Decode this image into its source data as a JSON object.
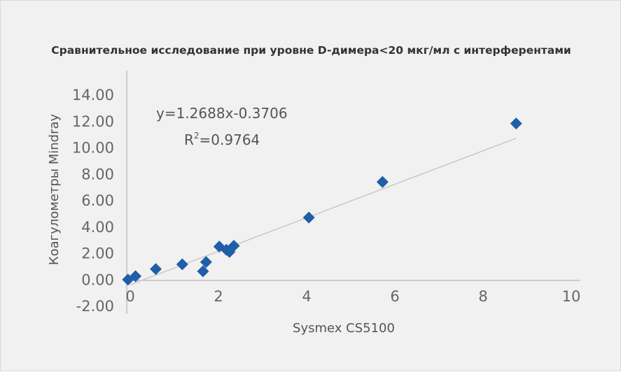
{
  "chart_data": {
    "type": "scatter",
    "title": "Сравнительное исследование при уровне D-димера<20 мкг/мл с интерферентами",
    "xlabel": "Sysmex CS5100",
    "ylabel": "Коагулометры Mindray",
    "xlim": [
      0,
      10
    ],
    "ylim": [
      -2,
      14
    ],
    "x_ticks": [
      "0",
      "2",
      "4",
      "6",
      "8",
      "10"
    ],
    "y_ticks": [
      "-2.00",
      "0.00",
      "2.00",
      "4.00",
      "6.00",
      "8.00",
      "10.00",
      "12.00",
      "14.00"
    ],
    "grid": false,
    "legend": "none",
    "marker_color": "#1f5ea8",
    "trendline_color": "#c8c8c8",
    "points": [
      {
        "x": -0.05,
        "y": 0.02
      },
      {
        "x": 0.12,
        "y": 0.28
      },
      {
        "x": 0.58,
        "y": 0.82
      },
      {
        "x": 1.18,
        "y": 1.18
      },
      {
        "x": 1.65,
        "y": 0.65
      },
      {
        "x": 1.72,
        "y": 1.35
      },
      {
        "x": 2.02,
        "y": 2.52
      },
      {
        "x": 2.18,
        "y": 2.28
      },
      {
        "x": 2.25,
        "y": 2.12
      },
      {
        "x": 2.35,
        "y": 2.58
      },
      {
        "x": 4.05,
        "y": 4.72
      },
      {
        "x": 5.72,
        "y": 7.42
      },
      {
        "x": 8.75,
        "y": 11.85
      }
    ],
    "trendline": {
      "slope": 1.2688,
      "intercept": -0.3706,
      "x_from": 0,
      "x_to": 8.75
    },
    "equation": "y=1.2688x-0.3706",
    "r_squared_prefix": "R",
    "r_squared_sup": "2",
    "r_squared_value": "=0.9764"
  }
}
